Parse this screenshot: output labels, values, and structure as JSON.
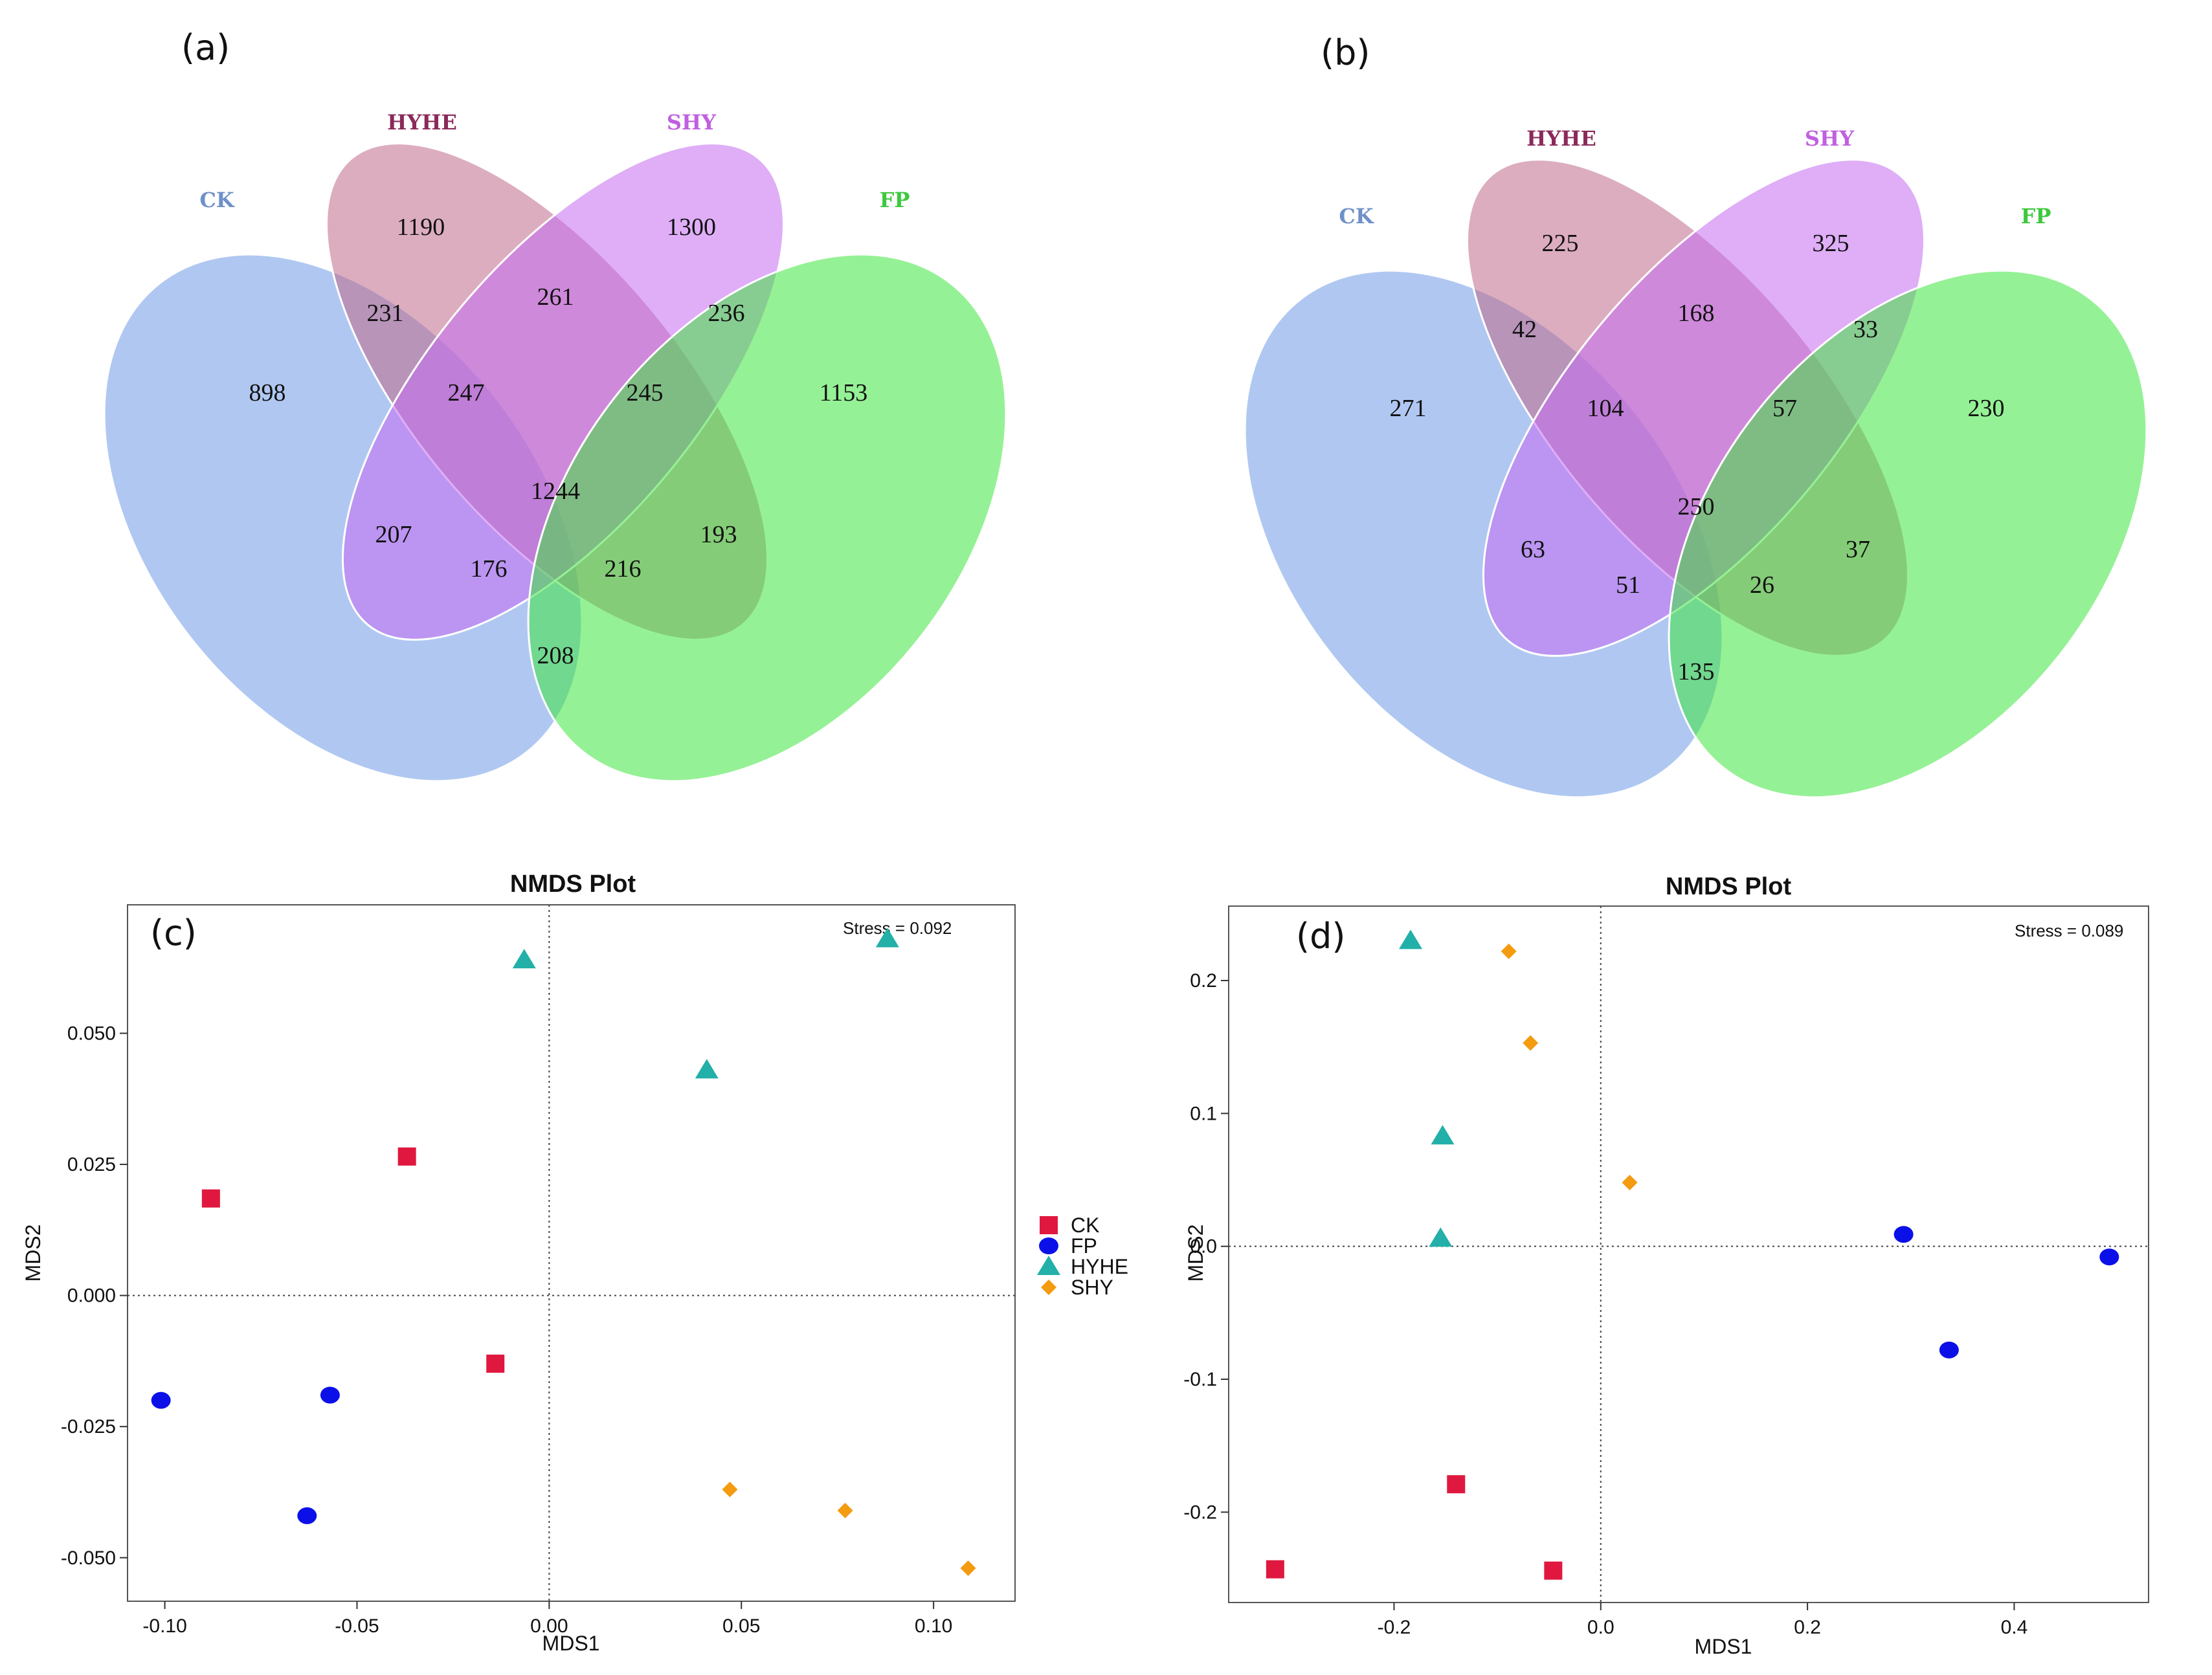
{
  "panels": {
    "a": {
      "tag": "(a)"
    },
    "b": {
      "tag": "(b)"
    },
    "c": {
      "tag": "(c)"
    },
    "d": {
      "tag": "(d)"
    }
  },
  "venn_sets": [
    {
      "name": "CK",
      "color": "#6f9be6",
      "label_color": "#6f90c8"
    },
    {
      "name": "HYHE",
      "color": "#c06a8a",
      "label_color": "#8b2a5a"
    },
    {
      "name": "SHY",
      "color": "#c46cf0",
      "label_color": "#c060e0"
    },
    {
      "name": "FP",
      "color": "#3ee63e",
      "label_color": "#3ec83e"
    }
  ],
  "colors": {
    "CK": "#e0183f",
    "FP": "#0c10e8",
    "HYHE": "#22b0a8",
    "SHY": "#f49b10"
  },
  "chart_data": [
    {
      "type": "venn",
      "panel": "(a)",
      "sets": [
        "CK",
        "HYHE",
        "SHY",
        "FP"
      ],
      "regions": {
        "CK": 898,
        "HYHE": 1190,
        "SHY": 1300,
        "FP": 1153,
        "CK&HYHE": 231,
        "HYHE&SHY": 261,
        "SHY&FP": 236,
        "CK&HYHE&SHY": 247,
        "HYHE&SHY&FP": 245,
        "CK&HYHE&SHY&FP": 1244,
        "CK&SHY": 207,
        "HYHE&FP": 193,
        "CK&SHY&FP": 176,
        "CK&HYHE&FP": 216,
        "CK&FP": 208
      }
    },
    {
      "type": "venn",
      "panel": "(b)",
      "sets": [
        "CK",
        "HYHE",
        "SHY",
        "FP"
      ],
      "regions": {
        "CK": 271,
        "HYHE": 225,
        "SHY": 325,
        "FP": 230,
        "CK&HYHE": 42,
        "HYHE&SHY": 168,
        "SHY&FP": 33,
        "CK&HYHE&SHY": 104,
        "HYHE&SHY&FP": 57,
        "CK&HYHE&SHY&FP": 250,
        "CK&SHY": 63,
        "HYHE&FP": 37,
        "CK&SHY&FP": 51,
        "CK&HYHE&FP": 26,
        "CK&FP": 135
      }
    },
    {
      "type": "scatter",
      "panel": "(c)",
      "title": "NMDS Plot",
      "xlabel": "MDS1",
      "ylabel": "MDS2",
      "stress": "Stress = 0.092",
      "xlim": [
        -0.1097,
        0.1212
      ],
      "ylim": [
        -0.0583,
        0.0745
      ],
      "xticks": [
        -0.1,
        -0.05,
        0.0,
        0.05,
        0.1
      ],
      "xtick_labels": [
        "-0.10",
        "-0.05",
        "0.00",
        "0.05",
        "0.10"
      ],
      "yticks": [
        -0.05,
        -0.025,
        0.0,
        0.025,
        0.05
      ],
      "ytick_labels": [
        "-0.050",
        "-0.025",
        "0.000",
        "0.025",
        "0.050"
      ],
      "reference_lines": {
        "x": 0,
        "y": 0
      },
      "legend": {
        "position": "right",
        "entries": [
          "CK",
          "FP",
          "HYHE",
          "SHY"
        ]
      },
      "series": [
        {
          "name": "CK",
          "marker": "square",
          "points": [
            [
              -0.088,
              0.0185
            ],
            [
              -0.037,
              0.0265
            ],
            [
              -0.014,
              -0.013
            ]
          ]
        },
        {
          "name": "FP",
          "marker": "circle",
          "points": [
            [
              -0.101,
              -0.02
            ],
            [
              -0.057,
              -0.019
            ],
            [
              -0.063,
              -0.042
            ]
          ]
        },
        {
          "name": "HYHE",
          "marker": "triangle",
          "points": [
            [
              -0.0065,
              0.064
            ],
            [
              0.041,
              0.043
            ],
            [
              0.088,
              0.068
            ]
          ]
        },
        {
          "name": "SHY",
          "marker": "diamond",
          "points": [
            [
              0.047,
              -0.037
            ],
            [
              0.077,
              -0.041
            ],
            [
              0.109,
              -0.052
            ]
          ]
        }
      ]
    },
    {
      "type": "scatter",
      "panel": "(d)",
      "title": "NMDS Plot",
      "xlabel": "MDS1",
      "ylabel": "MDS2",
      "stress": "Stress = 0.089",
      "xlim": [
        -0.36,
        0.53
      ],
      "ylim": [
        -0.268,
        0.256
      ],
      "xticks": [
        -0.2,
        0.0,
        0.2,
        0.4
      ],
      "xtick_labels": [
        "-0.2",
        "0.0",
        "0.2",
        "0.4"
      ],
      "yticks": [
        -0.2,
        -0.1,
        0.0,
        0.1,
        0.2
      ],
      "ytick_labels": [
        "-0.2",
        "-0.1",
        "0.0",
        "0.1",
        "0.2"
      ],
      "reference_lines": {
        "x": 0,
        "y": 0
      },
      "series": [
        {
          "name": "CK",
          "marker": "square",
          "points": [
            [
              -0.315,
              -0.243
            ],
            [
              -0.14,
              -0.179
            ],
            [
              -0.046,
              -0.244
            ]
          ]
        },
        {
          "name": "FP",
          "marker": "circle",
          "points": [
            [
              0.293,
              0.009
            ],
            [
              0.337,
              -0.078
            ],
            [
              0.492,
              -0.008
            ]
          ]
        },
        {
          "name": "HYHE",
          "marker": "triangle",
          "points": [
            [
              -0.184,
              0.23
            ],
            [
              -0.153,
              0.083
            ],
            [
              -0.155,
              0.006
            ]
          ]
        },
        {
          "name": "SHY",
          "marker": "diamond",
          "points": [
            [
              -0.089,
              0.222
            ],
            [
              -0.068,
              0.153
            ],
            [
              0.028,
              0.048
            ]
          ]
        }
      ]
    }
  ]
}
